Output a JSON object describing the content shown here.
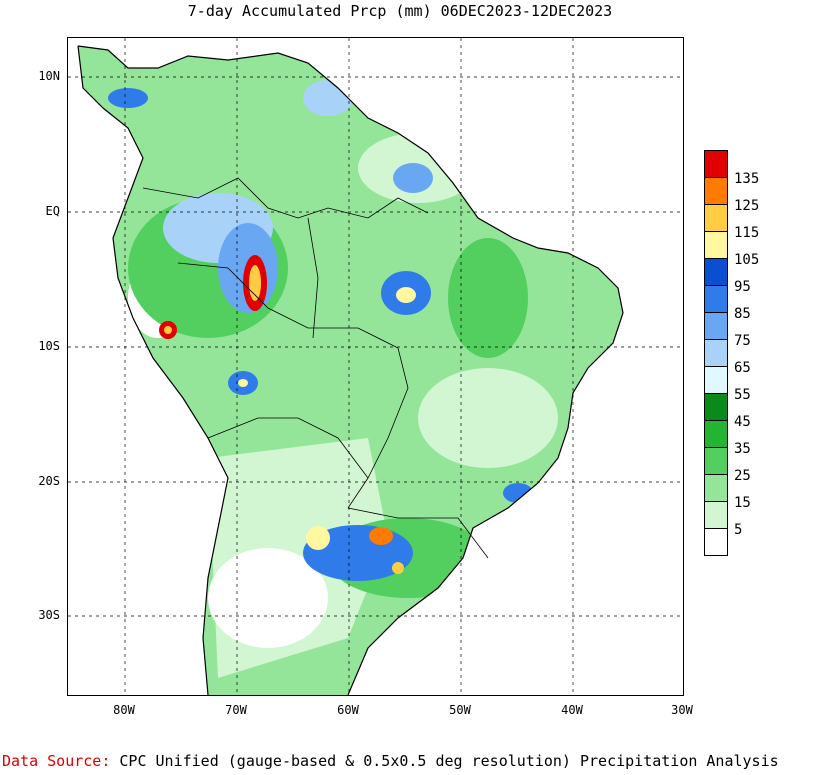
{
  "title": "7-day Accumulated Prcp (mm) 06DEC2023-12DEC2023",
  "x_axis": {
    "ticks": [
      "80W",
      "70W",
      "60W",
      "50W",
      "40W",
      "30W"
    ]
  },
  "y_axis": {
    "ticks": [
      "10N",
      "EQ",
      "10S",
      "20S",
      "30S"
    ]
  },
  "legend": {
    "entries": [
      {
        "label": "135",
        "color": "#e10000"
      },
      {
        "label": "125",
        "color": "#ff7a00"
      },
      {
        "label": "115",
        "color": "#ffcc44"
      },
      {
        "label": "105",
        "color": "#fff8a0"
      },
      {
        "label": "95",
        "color": "#0a4fd0"
      },
      {
        "label": "85",
        "color": "#2f7bea"
      },
      {
        "label": "75",
        "color": "#6aa7f2"
      },
      {
        "label": "65",
        "color": "#a8d2f8"
      },
      {
        "label": "55",
        "color": "#e0f8ff"
      },
      {
        "label": "45",
        "color": "#0a8a1a"
      },
      {
        "label": "35",
        "color": "#24b433"
      },
      {
        "label": "25",
        "color": "#52cf5e"
      },
      {
        "label": "15",
        "color": "#94e59a"
      },
      {
        "label": "5",
        "color": "#d2f5d2"
      },
      {
        "label": "",
        "color": "#ffffff"
      }
    ]
  },
  "footer": {
    "source_label": "Data Source:",
    "source_text": "CPC Unified (gauge-based & 0.5x0.5 deg resolution) Precipitation Analysis"
  },
  "map": {
    "region": "South America (Brazil focus)",
    "lon_range": [
      "85W",
      "30W"
    ],
    "lat_range": [
      "13N",
      "36S"
    ],
    "gridlines": "dashed"
  }
}
